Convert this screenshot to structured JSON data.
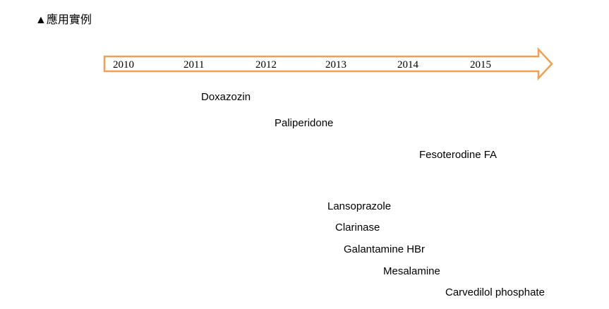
{
  "title": "▲應用實例",
  "timeline": {
    "years": [
      "2010",
      "2011",
      "2012",
      "2013",
      "2014",
      "2015"
    ]
  },
  "products": [
    "Doxazozin",
    "Paliperidone",
    "Fesoterodine FA",
    "Lansoprazole",
    "Clarinase",
    "Galantamine HBr",
    "Mesalamine",
    "Carvedilol phosphate"
  ]
}
